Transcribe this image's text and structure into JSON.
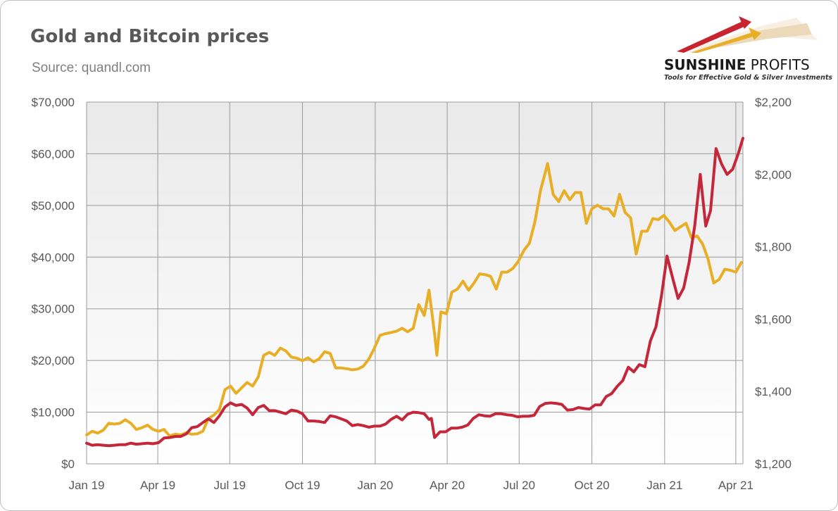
{
  "header": {
    "title": "Gold and Bitcoin prices",
    "subtitle": "Source: quandl.com"
  },
  "logo": {
    "name_bold": "SUNSHINE",
    "name_light": " PROFITS",
    "tagline": "Tools for Effective Gold & Silver Investments",
    "icon": "rising-arrows-icon"
  },
  "colors": {
    "gold": "#E8AE25",
    "bitcoin": "#C4263A",
    "grid": "#9a9a9a",
    "plot_top": "#e9e9e9",
    "plot_bottom": "#ffffff"
  },
  "chart_data": {
    "type": "line",
    "x_axis": {
      "type": "date",
      "start": "2019-01-01",
      "end": "2021-04-10",
      "ticks": [
        {
          "date": "2019-01-01",
          "label": "Jan 19"
        },
        {
          "date": "2019-04-01",
          "label": "Apr 19"
        },
        {
          "date": "2019-07-01",
          "label": "Jul 19"
        },
        {
          "date": "2019-10-01",
          "label": "Oct 19"
        },
        {
          "date": "2020-01-01",
          "label": "Jan 20"
        },
        {
          "date": "2020-04-01",
          "label": "Apr 20"
        },
        {
          "date": "2020-07-01",
          "label": "Jul 20"
        },
        {
          "date": "2020-10-01",
          "label": "Oct 20"
        },
        {
          "date": "2021-01-01",
          "label": "Jan 21"
        },
        {
          "date": "2021-04-01",
          "label": "Apr 21"
        }
      ]
    },
    "y_left": {
      "min": 0,
      "max": 70000,
      "ticks": [
        {
          "value": 0,
          "label": "$0"
        },
        {
          "value": 10000,
          "label": "$10,000"
        },
        {
          "value": 20000,
          "label": "$20,000"
        },
        {
          "value": 30000,
          "label": "$30,000"
        },
        {
          "value": 40000,
          "label": "$40,000"
        },
        {
          "value": 50000,
          "label": "$50,000"
        },
        {
          "value": 60000,
          "label": "$60,000"
        },
        {
          "value": 70000,
          "label": "$70,000"
        }
      ]
    },
    "y_right": {
      "min": 1200,
      "max": 2200,
      "ticks": [
        {
          "value": 1200,
          "label": "$1,200"
        },
        {
          "value": 1400,
          "label": "$1,400"
        },
        {
          "value": 1600,
          "label": "$1,600"
        },
        {
          "value": 1800,
          "label": "$1,800"
        },
        {
          "value": 2000,
          "label": "$2,000"
        },
        {
          "value": 2200,
          "label": "$2,200"
        }
      ]
    },
    "grid": true,
    "legend": "none",
    "series": [
      {
        "axis": "right",
        "color": "#E8AE25",
        "points": [
          [
            "2019-01-01",
            1280
          ],
          [
            "2019-01-08",
            1290
          ],
          [
            "2019-01-15",
            1285
          ],
          [
            "2019-01-22",
            1293
          ],
          [
            "2019-01-29",
            1312
          ],
          [
            "2019-02-05",
            1310
          ],
          [
            "2019-02-12",
            1312
          ],
          [
            "2019-02-19",
            1322
          ],
          [
            "2019-02-26",
            1312
          ],
          [
            "2019-03-05",
            1295
          ],
          [
            "2019-03-12",
            1300
          ],
          [
            "2019-03-19",
            1307
          ],
          [
            "2019-03-26",
            1295
          ],
          [
            "2019-04-02",
            1290
          ],
          [
            "2019-04-09",
            1295
          ],
          [
            "2019-04-16",
            1277
          ],
          [
            "2019-04-23",
            1282
          ],
          [
            "2019-04-30",
            1280
          ],
          [
            "2019-05-07",
            1286
          ],
          [
            "2019-05-14",
            1282
          ],
          [
            "2019-05-21",
            1283
          ],
          [
            "2019-05-28",
            1290
          ],
          [
            "2019-06-04",
            1325
          ],
          [
            "2019-06-11",
            1335
          ],
          [
            "2019-06-18",
            1350
          ],
          [
            "2019-06-25",
            1405
          ],
          [
            "2019-07-02",
            1415
          ],
          [
            "2019-07-09",
            1395
          ],
          [
            "2019-07-16",
            1410
          ],
          [
            "2019-07-23",
            1425
          ],
          [
            "2019-07-30",
            1415
          ],
          [
            "2019-08-06",
            1440
          ],
          [
            "2019-08-13",
            1500
          ],
          [
            "2019-08-20",
            1508
          ],
          [
            "2019-08-27",
            1500
          ],
          [
            "2019-09-03",
            1520
          ],
          [
            "2019-09-10",
            1512
          ],
          [
            "2019-09-17",
            1495
          ],
          [
            "2019-09-24",
            1492
          ],
          [
            "2019-10-01",
            1485
          ],
          [
            "2019-10-08",
            1493
          ],
          [
            "2019-10-15",
            1482
          ],
          [
            "2019-10-22",
            1490
          ],
          [
            "2019-10-29",
            1510
          ],
          [
            "2019-11-05",
            1505
          ],
          [
            "2019-11-12",
            1465
          ],
          [
            "2019-11-19",
            1465
          ],
          [
            "2019-11-26",
            1463
          ],
          [
            "2019-12-03",
            1460
          ],
          [
            "2019-12-10",
            1462
          ],
          [
            "2019-12-17",
            1470
          ],
          [
            "2019-12-24",
            1490
          ],
          [
            "2019-12-31",
            1520
          ],
          [
            "2020-01-07",
            1555
          ],
          [
            "2020-01-14",
            1560
          ],
          [
            "2020-01-21",
            1563
          ],
          [
            "2020-01-28",
            1567
          ],
          [
            "2020-02-04",
            1575
          ],
          [
            "2020-02-11",
            1565
          ],
          [
            "2020-02-18",
            1575
          ],
          [
            "2020-02-25",
            1640
          ],
          [
            "2020-03-03",
            1610
          ],
          [
            "2020-03-09",
            1680
          ],
          [
            "2020-03-16",
            1560
          ],
          [
            "2020-03-19",
            1500
          ],
          [
            "2020-03-24",
            1620
          ],
          [
            "2020-03-31",
            1615
          ],
          [
            "2020-04-07",
            1675
          ],
          [
            "2020-04-14",
            1683
          ],
          [
            "2020-04-21",
            1705
          ],
          [
            "2020-04-28",
            1680
          ],
          [
            "2020-05-05",
            1700
          ],
          [
            "2020-05-12",
            1725
          ],
          [
            "2020-05-19",
            1723
          ],
          [
            "2020-05-26",
            1718
          ],
          [
            "2020-06-02",
            1683
          ],
          [
            "2020-06-09",
            1730
          ],
          [
            "2020-06-16",
            1730
          ],
          [
            "2020-06-23",
            1740
          ],
          [
            "2020-06-30",
            1760
          ],
          [
            "2020-07-07",
            1790
          ],
          [
            "2020-07-14",
            1810
          ],
          [
            "2020-07-21",
            1870
          ],
          [
            "2020-07-28",
            1955
          ],
          [
            "2020-08-06",
            2030
          ],
          [
            "2020-08-13",
            1945
          ],
          [
            "2020-08-20",
            1925
          ],
          [
            "2020-08-27",
            1955
          ],
          [
            "2020-09-03",
            1930
          ],
          [
            "2020-09-10",
            1950
          ],
          [
            "2020-09-17",
            1950
          ],
          [
            "2020-09-24",
            1865
          ],
          [
            "2020-10-01",
            1905
          ],
          [
            "2020-10-08",
            1915
          ],
          [
            "2020-10-15",
            1905
          ],
          [
            "2020-10-22",
            1905
          ],
          [
            "2020-10-29",
            1885
          ],
          [
            "2020-11-05",
            1945
          ],
          [
            "2020-11-12",
            1895
          ],
          [
            "2020-11-19",
            1880
          ],
          [
            "2020-11-26",
            1780
          ],
          [
            "2020-12-03",
            1843
          ],
          [
            "2020-12-10",
            1843
          ],
          [
            "2020-12-17",
            1878
          ],
          [
            "2020-12-24",
            1875
          ],
          [
            "2020-12-31",
            1887
          ],
          [
            "2021-01-07",
            1868
          ],
          [
            "2021-01-14",
            1845
          ],
          [
            "2021-01-21",
            1855
          ],
          [
            "2021-01-28",
            1865
          ],
          [
            "2021-02-04",
            1825
          ],
          [
            "2021-02-11",
            1830
          ],
          [
            "2021-02-18",
            1808
          ],
          [
            "2021-02-25",
            1765
          ],
          [
            "2021-03-04",
            1700
          ],
          [
            "2021-03-11",
            1710
          ],
          [
            "2021-03-18",
            1738
          ],
          [
            "2021-03-25",
            1735
          ],
          [
            "2021-04-01",
            1730
          ],
          [
            "2021-04-08",
            1757
          ]
        ]
      },
      {
        "axis": "left",
        "color": "#C4263A",
        "points": [
          [
            "2019-01-01",
            4000
          ],
          [
            "2019-01-08",
            3600
          ],
          [
            "2019-01-15",
            3700
          ],
          [
            "2019-01-22",
            3600
          ],
          [
            "2019-01-29",
            3500
          ],
          [
            "2019-02-05",
            3600
          ],
          [
            "2019-02-12",
            3700
          ],
          [
            "2019-02-19",
            3700
          ],
          [
            "2019-02-26",
            4000
          ],
          [
            "2019-03-05",
            3800
          ],
          [
            "2019-03-12",
            3900
          ],
          [
            "2019-03-19",
            4000
          ],
          [
            "2019-03-26",
            3900
          ],
          [
            "2019-04-02",
            4100
          ],
          [
            "2019-04-09",
            5000
          ],
          [
            "2019-04-16",
            5100
          ],
          [
            "2019-04-23",
            5300
          ],
          [
            "2019-04-30",
            5300
          ],
          [
            "2019-05-07",
            5800
          ],
          [
            "2019-05-14",
            7000
          ],
          [
            "2019-05-21",
            7200
          ],
          [
            "2019-05-28",
            8000
          ],
          [
            "2019-06-04",
            8700
          ],
          [
            "2019-06-11",
            8000
          ],
          [
            "2019-06-18",
            9300
          ],
          [
            "2019-06-25",
            11000
          ],
          [
            "2019-07-02",
            11800
          ],
          [
            "2019-07-09",
            11300
          ],
          [
            "2019-07-16",
            11500
          ],
          [
            "2019-07-23",
            10800
          ],
          [
            "2019-07-30",
            9500
          ],
          [
            "2019-08-06",
            10900
          ],
          [
            "2019-08-13",
            11300
          ],
          [
            "2019-08-20",
            10300
          ],
          [
            "2019-08-27",
            10300
          ],
          [
            "2019-09-03",
            10000
          ],
          [
            "2019-09-10",
            9700
          ],
          [
            "2019-09-17",
            10400
          ],
          [
            "2019-09-24",
            10200
          ],
          [
            "2019-10-01",
            9700
          ],
          [
            "2019-10-08",
            8300
          ],
          [
            "2019-10-15",
            8300
          ],
          [
            "2019-10-22",
            8200
          ],
          [
            "2019-10-29",
            8000
          ],
          [
            "2019-11-05",
            9300
          ],
          [
            "2019-11-12",
            9100
          ],
          [
            "2019-11-19",
            8700
          ],
          [
            "2019-11-26",
            8300
          ],
          [
            "2019-12-03",
            7400
          ],
          [
            "2019-12-10",
            7600
          ],
          [
            "2019-12-17",
            7400
          ],
          [
            "2019-12-24",
            7100
          ],
          [
            "2019-12-31",
            7300
          ],
          [
            "2020-01-07",
            7300
          ],
          [
            "2020-01-14",
            7700
          ],
          [
            "2020-01-21",
            8600
          ],
          [
            "2020-01-28",
            9200
          ],
          [
            "2020-02-04",
            8500
          ],
          [
            "2020-02-11",
            9600
          ],
          [
            "2020-02-18",
            10000
          ],
          [
            "2020-02-25",
            9900
          ],
          [
            "2020-03-03",
            9700
          ],
          [
            "2020-03-09",
            8600
          ],
          [
            "2020-03-12",
            8800
          ],
          [
            "2020-03-16",
            5100
          ],
          [
            "2020-03-23",
            6200
          ],
          [
            "2020-03-30",
            6200
          ],
          [
            "2020-04-06",
            6900
          ],
          [
            "2020-04-13",
            6900
          ],
          [
            "2020-04-20",
            7100
          ],
          [
            "2020-04-27",
            7500
          ],
          [
            "2020-05-04",
            8800
          ],
          [
            "2020-05-11",
            9500
          ],
          [
            "2020-05-18",
            9300
          ],
          [
            "2020-05-25",
            9200
          ],
          [
            "2020-06-01",
            9700
          ],
          [
            "2020-06-08",
            9700
          ],
          [
            "2020-06-15",
            9500
          ],
          [
            "2020-06-22",
            9400
          ],
          [
            "2020-06-29",
            9100
          ],
          [
            "2020-07-06",
            9200
          ],
          [
            "2020-07-13",
            9200
          ],
          [
            "2020-07-20",
            9400
          ],
          [
            "2020-07-27",
            11100
          ],
          [
            "2020-08-03",
            11700
          ],
          [
            "2020-08-10",
            11800
          ],
          [
            "2020-08-17",
            11700
          ],
          [
            "2020-08-24",
            11500
          ],
          [
            "2020-08-31",
            10400
          ],
          [
            "2020-09-07",
            10500
          ],
          [
            "2020-09-14",
            10900
          ],
          [
            "2020-09-21",
            10700
          ],
          [
            "2020-09-28",
            10600
          ],
          [
            "2020-10-05",
            11400
          ],
          [
            "2020-10-12",
            11400
          ],
          [
            "2020-10-19",
            13000
          ],
          [
            "2020-10-26",
            13600
          ],
          [
            "2020-11-02",
            15000
          ],
          [
            "2020-11-09",
            16100
          ],
          [
            "2020-11-16",
            18700
          ],
          [
            "2020-11-23",
            17800
          ],
          [
            "2020-11-30",
            19200
          ],
          [
            "2020-12-07",
            18800
          ],
          [
            "2020-12-14",
            23800
          ],
          [
            "2020-12-21",
            26500
          ],
          [
            "2020-12-28",
            32500
          ],
          [
            "2021-01-04",
            40200
          ],
          [
            "2021-01-11",
            36000
          ],
          [
            "2021-01-18",
            32000
          ],
          [
            "2021-01-25",
            34000
          ],
          [
            "2021-02-01",
            39000
          ],
          [
            "2021-02-08",
            46000
          ],
          [
            "2021-02-15",
            56000
          ],
          [
            "2021-02-22",
            46000
          ],
          [
            "2021-02-28",
            49000
          ],
          [
            "2021-03-07",
            61000
          ],
          [
            "2021-03-14",
            58000
          ],
          [
            "2021-03-21",
            56000
          ],
          [
            "2021-03-28",
            57000
          ],
          [
            "2021-04-04",
            60000
          ],
          [
            "2021-04-10",
            63000
          ]
        ]
      }
    ]
  }
}
